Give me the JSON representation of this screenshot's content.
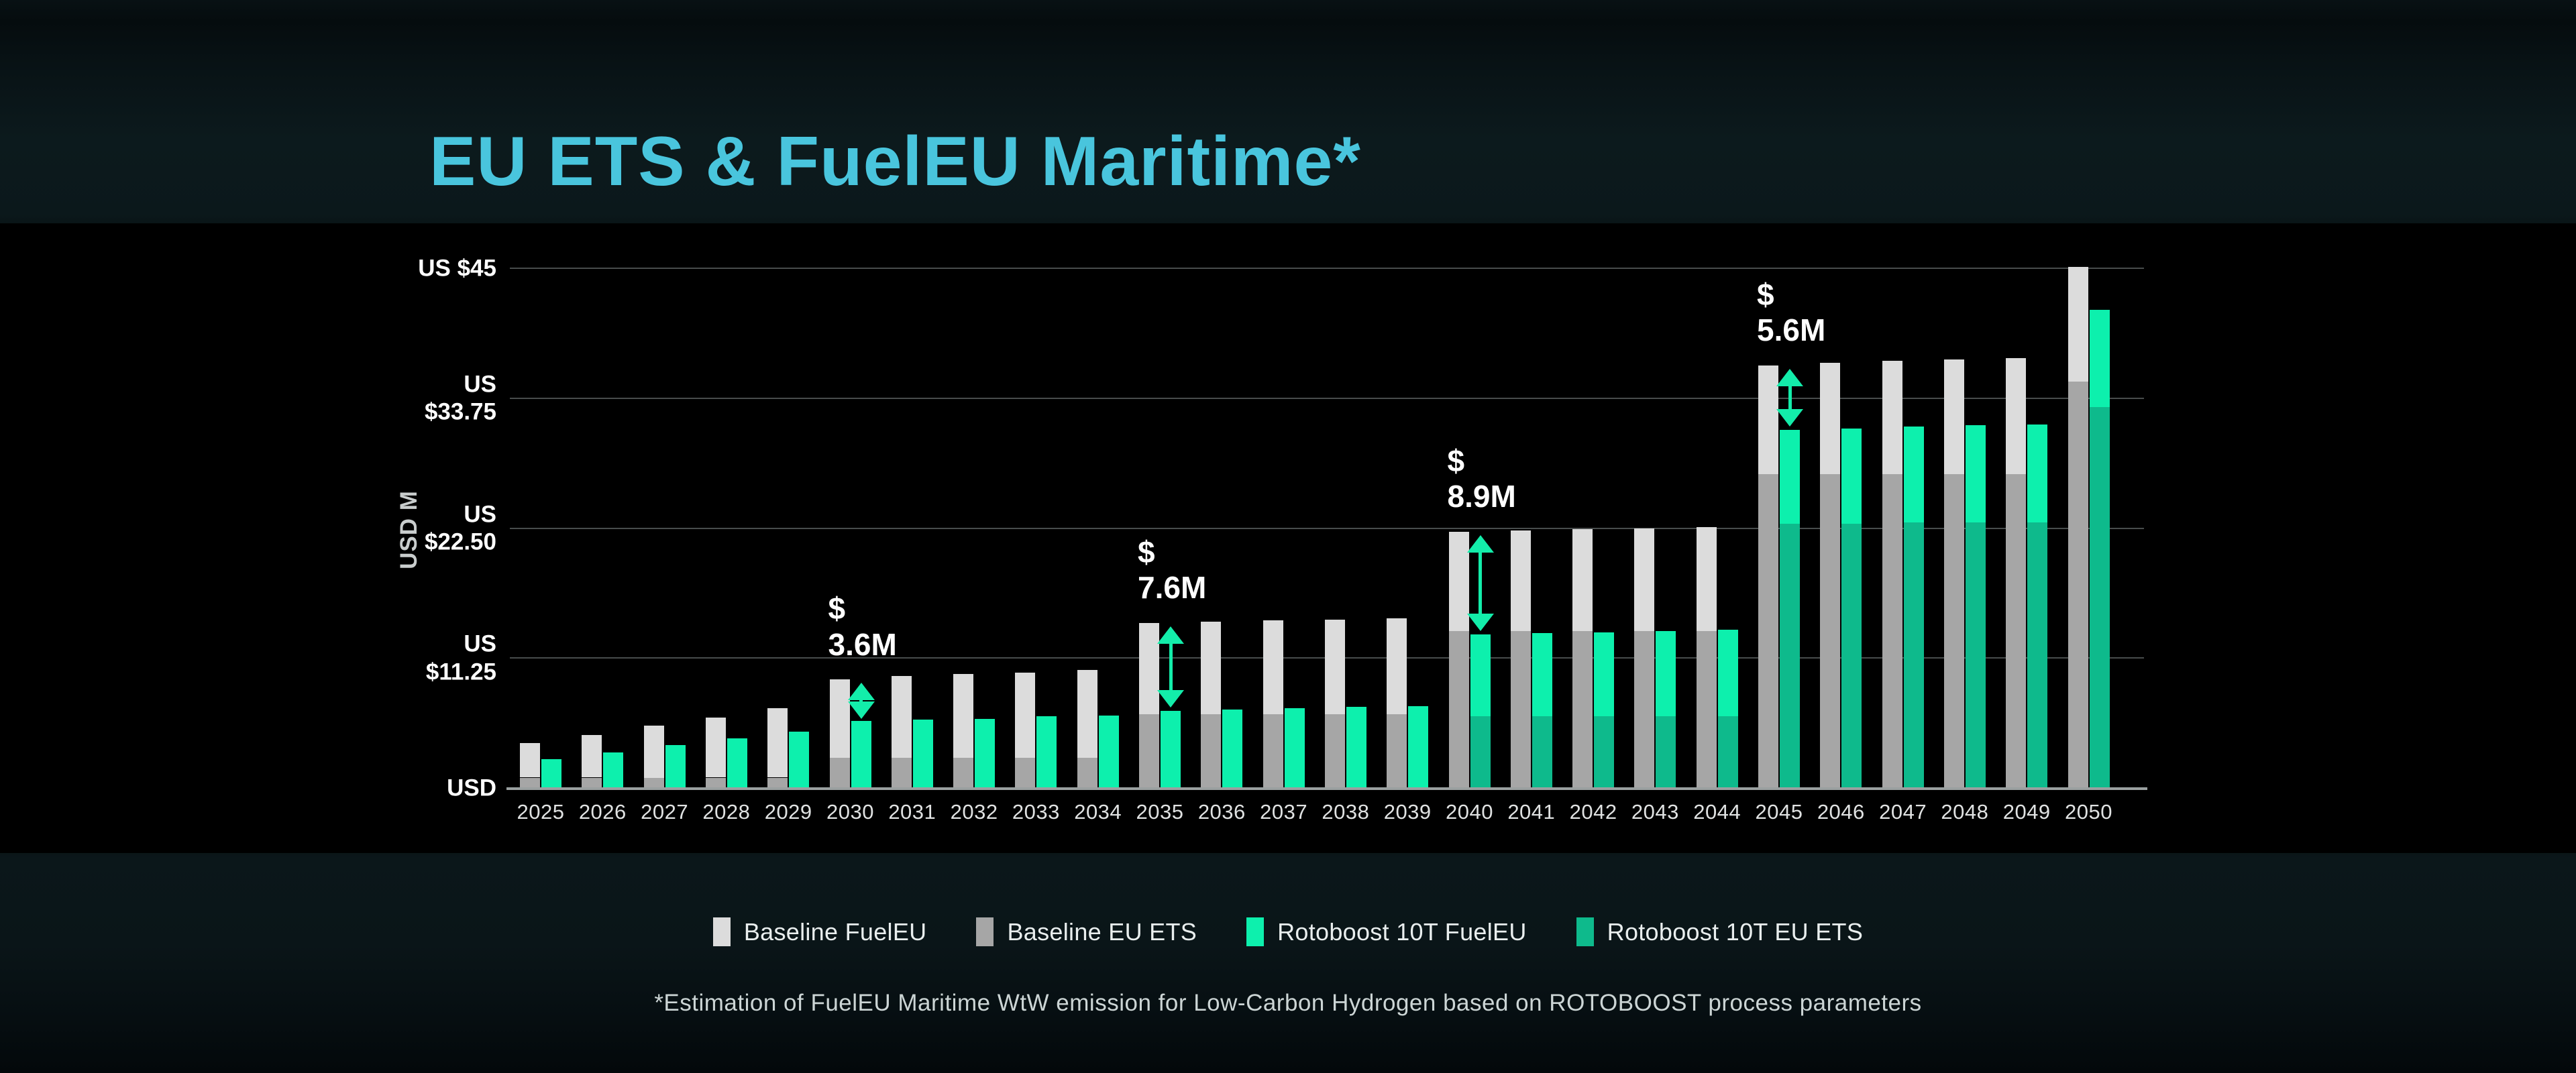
{
  "title": "EU ETS & FuelEU Maritime*",
  "footnote": "*Estimation of FuelEU Maritime WtW emission for Low-Carbon Hydrogen based on ROTOBOOST process parameters",
  "colors": {
    "title": "#49c5dd",
    "baseline_fueleu": "#dcdcdc",
    "baseline_euets": "#a6a6a6",
    "rotoboost_fueleu": "#0df0ad",
    "rotoboost_euets": "#0eba8c",
    "annotation_arrow": "#13edaa",
    "gridline": "#484c4c",
    "axis_line": "#9aa0a0",
    "plot_background": "#000000"
  },
  "y_axis": {
    "title": "USD M",
    "ticks": [
      {
        "value": 45,
        "label": "US $45"
      },
      {
        "value": 33.75,
        "label": "US\n$33.75"
      },
      {
        "value": 22.5,
        "label": "US\n$22.50"
      },
      {
        "value": 11.25,
        "label": "US\n$11.25"
      },
      {
        "value": 0,
        "label": "USD"
      }
    ]
  },
  "legend": [
    {
      "label": "Baseline FuelEU",
      "color": "#dcdcdc"
    },
    {
      "label": "Baseline EU ETS",
      "color": "#a6a6a6"
    },
    {
      "label": "Rotoboost 10T FuelEU",
      "color": "#0df0ad"
    },
    {
      "label": "Rotoboost 10T EU ETS",
      "color": "#0eba8c"
    }
  ],
  "chart_data": {
    "type": "bar",
    "stacked": true,
    "title": "EU ETS & FuelEU Maritime*",
    "ylabel": "USD M",
    "units": "USD M",
    "ylim": [
      0,
      45
    ],
    "y_ticks": [
      0,
      11.25,
      22.5,
      33.75,
      45
    ],
    "grid": true,
    "legend_position": "bottom",
    "categories": [
      2025,
      2026,
      2027,
      2028,
      2029,
      2030,
      2031,
      2032,
      2033,
      2034,
      2035,
      2036,
      2037,
      2038,
      2039,
      2040,
      2041,
      2042,
      2043,
      2044,
      2045,
      2046,
      2047,
      2048,
      2049,
      2050
    ],
    "series": [
      {
        "name": "Baseline EU ETS",
        "stack": "baseline",
        "segment": "bottom",
        "color": "#a6a6a6",
        "values": [
          0.9,
          0.9,
          0.9,
          0.9,
          0.9,
          2.6,
          2.6,
          2.6,
          2.6,
          2.6,
          6.4,
          6.4,
          6.4,
          6.4,
          6.4,
          13.6,
          13.6,
          13.6,
          13.6,
          13.6,
          27.2,
          27.2,
          27.2,
          27.2,
          27.2,
          35.2
        ]
      },
      {
        "name": "Baseline FuelEU",
        "stack": "baseline",
        "segment": "top",
        "color": "#dcdcdc",
        "values": [
          3.0,
          3.7,
          4.5,
          5.2,
          6.0,
          6.8,
          7.1,
          7.3,
          7.4,
          7.6,
          7.9,
          8.0,
          8.1,
          8.2,
          8.3,
          8.6,
          8.7,
          8.8,
          8.9,
          9.0,
          9.4,
          9.6,
          9.8,
          9.9,
          10.0,
          9.9
        ]
      },
      {
        "name": "Rotoboost 10T EU ETS",
        "stack": "rotoboost",
        "segment": "bottom",
        "color": "#0eba8c",
        "values": [
          0,
          0,
          0,
          0,
          0,
          0,
          0,
          0,
          0,
          0,
          0,
          0,
          0,
          0,
          0,
          6.2,
          6.2,
          6.2,
          6.2,
          6.2,
          22.9,
          22.9,
          23.0,
          23.0,
          23.0,
          33.0
        ]
      },
      {
        "name": "Rotoboost 10T FuelEU",
        "stack": "rotoboost",
        "segment": "top",
        "color": "#0df0ad",
        "values": [
          2.5,
          3.1,
          3.7,
          4.3,
          4.9,
          5.8,
          5.9,
          6.0,
          6.2,
          6.3,
          6.7,
          6.8,
          6.9,
          7.0,
          7.1,
          7.1,
          7.2,
          7.3,
          7.4,
          7.5,
          8.1,
          8.2,
          8.3,
          8.4,
          8.5,
          8.4
        ]
      }
    ],
    "annotations": [
      {
        "year": 2030,
        "lines": [
          "$",
          "3.6M"
        ],
        "delta_usd_m": 3.6
      },
      {
        "year": 2035,
        "lines": [
          "$",
          "7.6M"
        ],
        "delta_usd_m": 7.6
      },
      {
        "year": 2040,
        "lines": [
          "$",
          "8.9M"
        ],
        "delta_usd_m": 8.9
      },
      {
        "year": 2045,
        "lines": [
          "$",
          "5.6M"
        ],
        "delta_usd_m": 5.6
      }
    ]
  }
}
